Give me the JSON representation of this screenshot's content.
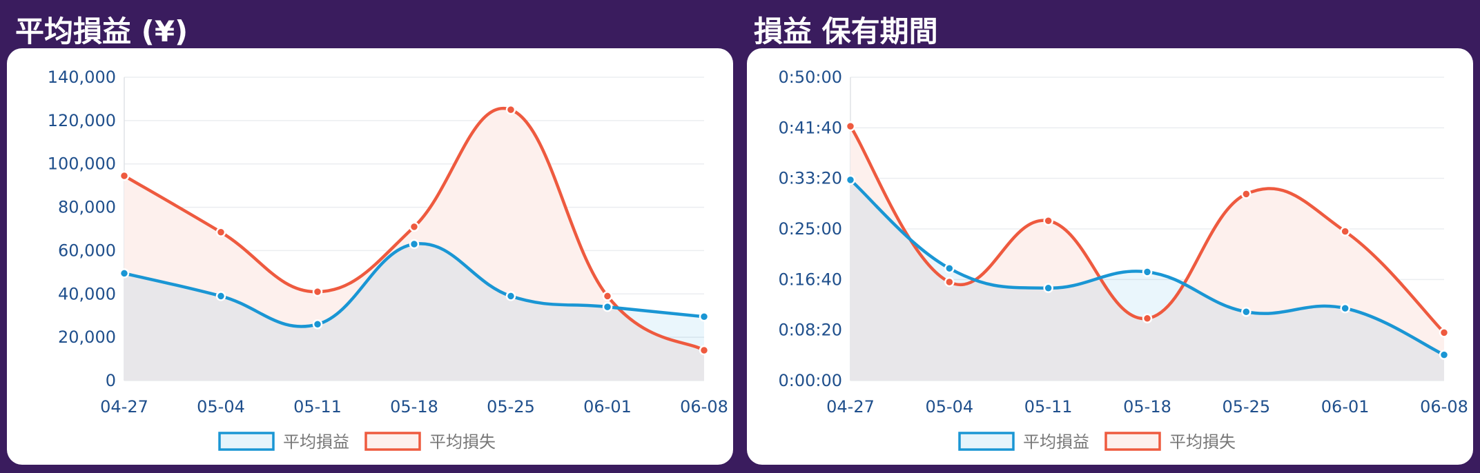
{
  "panels": [
    {
      "title": "平均損益 (¥)",
      "chart_data": {
        "type": "area",
        "categories": [
          "04-27",
          "05-04",
          "05-11",
          "05-18",
          "05-25",
          "06-01",
          "06-08"
        ],
        "ylim": [
          0,
          140000
        ],
        "yticks": [
          0,
          20000,
          40000,
          60000,
          80000,
          100000,
          120000,
          140000
        ],
        "ytick_labels": [
          "0",
          "20,000",
          "40,000",
          "60,000",
          "80,000",
          "100,000",
          "120,000",
          "140,000"
        ],
        "series": [
          {
            "name": "平均損益",
            "values": [
              49500,
              39000,
              26000,
              63000,
              39000,
              34000,
              29500
            ]
          },
          {
            "name": "平均損失",
            "values": [
              94500,
              68500,
              41000,
              71000,
              125000,
              39000,
              14000
            ]
          }
        ],
        "grid": true,
        "legend": "bottom"
      }
    },
    {
      "title": "損益 保有期間",
      "chart_data": {
        "type": "area",
        "categories": [
          "04-27",
          "05-04",
          "05-11",
          "05-18",
          "05-25",
          "06-01",
          "06-08"
        ],
        "ylim": [
          0,
          3000
        ],
        "yticks": [
          0,
          500,
          1000,
          1500,
          2000,
          2500,
          3000
        ],
        "ytick_labels": [
          "0:00:00",
          "0:08:20",
          "0:16:40",
          "0:25:00",
          "0:33:20",
          "0:41:40",
          "0:50:00"
        ],
        "series": [
          {
            "name": "平均損益",
            "values": [
              1985,
              1110,
              915,
              1075,
              680,
              715,
              255
            ]
          },
          {
            "name": "平均損失",
            "values": [
              2515,
              975,
              1580,
              615,
              1845,
              1475,
              475
            ]
          }
        ],
        "grid": true,
        "legend": "bottom"
      }
    }
  ],
  "colors": {
    "profit_line": "#1a96d4",
    "profit_fill": "#e6f4fb",
    "loss_line": "#ee5a3f",
    "loss_fill": "#fdf0ed",
    "overlap_fill": "#e6e8eb"
  }
}
